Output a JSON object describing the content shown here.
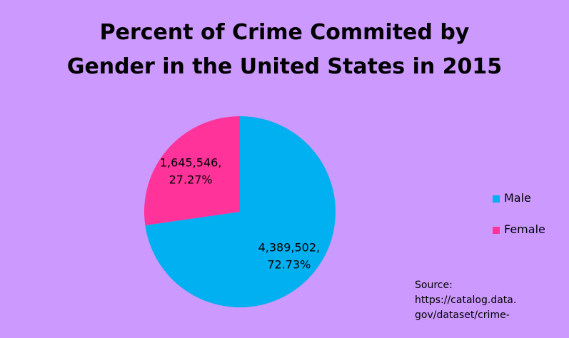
{
  "chart_data": {
    "type": "pie",
    "title_lines": [
      "Percent of Crime Commited by",
      "Gender in the United States in 2015"
    ],
    "categories": [
      "Male",
      "Female"
    ],
    "values": [
      4389502,
      1645546
    ],
    "value_labels": [
      "4,389,502,",
      "1,645,546,"
    ],
    "percent_labels": [
      "72.73%",
      "27.27%"
    ],
    "percentages": [
      72.73,
      27.27
    ],
    "colors": [
      "#00b0f0",
      "#ff3399"
    ],
    "legend_position": "right",
    "source_lines": [
      "Source:",
      "https://catalog.data.",
      "gov/dataset/crime-"
    ]
  }
}
